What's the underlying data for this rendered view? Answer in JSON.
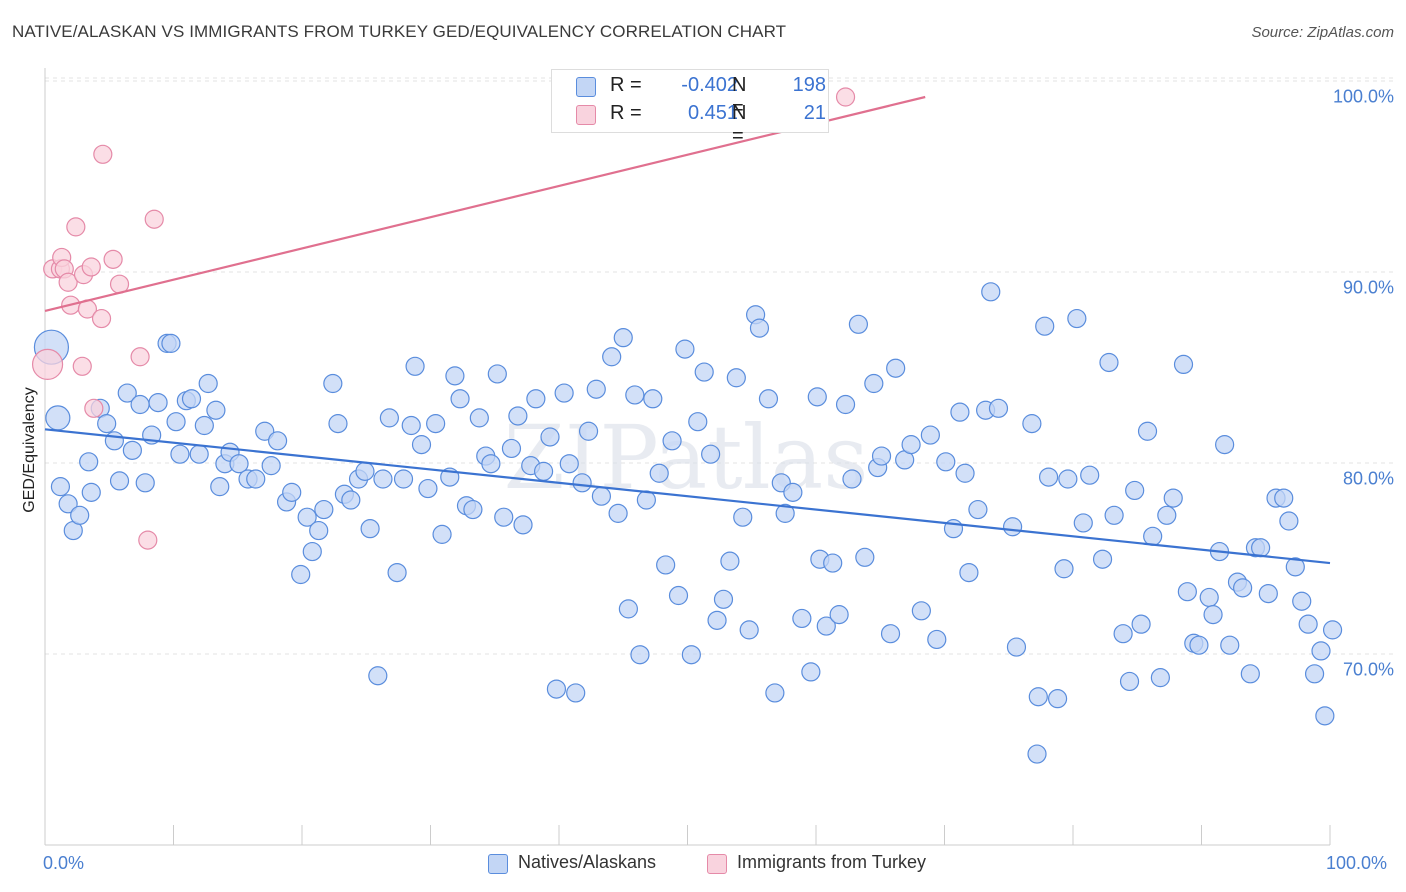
{
  "title": "NATIVE/ALASKAN VS IMMIGRANTS FROM TURKEY GED/EQUIVALENCY CORRELATION CHART",
  "source": "Source: ZipAtlas.com",
  "watermark": "ZIPatlas",
  "legend_stats": [
    {
      "r_label": "R =",
      "r_value": "-0.402",
      "n_label": "N =",
      "n_value": "198",
      "color": "#a8c4ef",
      "border": "#5a8ddd"
    },
    {
      "r_label": "R =",
      "r_value": "0.451",
      "n_label": "N =",
      "n_value": "21",
      "color": "#f7c1d0",
      "border": "#e58aa8"
    }
  ],
  "legend_bottom": [
    {
      "label": "Natives/Alaskans",
      "color": "#c3d6f5",
      "border": "#5a8ddd"
    },
    {
      "label": "Immigrants from Turkey",
      "color": "#f9d3de",
      "border": "#e58aa8"
    }
  ],
  "chart_data": {
    "type": "scatter",
    "title": "NATIVE/ALASKAN VS IMMIGRANTS FROM TURKEY GED/EQUIVALENCY CORRELATION CHART",
    "xlabel": "",
    "ylabel": "GED/Equivalency",
    "xlim": [
      0,
      100
    ],
    "ylim": [
      60,
      101.5
    ],
    "x_tick_labels": [
      "0.0%",
      "100.0%"
    ],
    "y_ticks": [
      70,
      80,
      90,
      100
    ],
    "y_tick_labels": [
      "70.0%",
      "80.0%",
      "90.0%",
      "100.0%"
    ],
    "grid": "horizontal dashed",
    "series": [
      {
        "name": "Natives/Alaskans",
        "color": "#5a8ddd",
        "fill": "#c3d6f5",
        "trend": {
          "x": [
            0,
            100
          ],
          "y": [
            82.6,
            75.6
          ],
          "color": "#3b73d1"
        },
        "points": [
          [
            0.5,
            86.9
          ],
          [
            1,
            83.2
          ],
          [
            1.2,
            79.6
          ],
          [
            1.8,
            78.7
          ],
          [
            2.2,
            77.3
          ],
          [
            2.7,
            78.1
          ],
          [
            3.4,
            80.9
          ],
          [
            3.6,
            79.3
          ],
          [
            4.3,
            83.7
          ],
          [
            4.8,
            82.9
          ],
          [
            5.4,
            82.0
          ],
          [
            5.8,
            79.9
          ],
          [
            6.4,
            84.5
          ],
          [
            6.8,
            81.5
          ],
          [
            7.4,
            83.9
          ],
          [
            7.8,
            79.8
          ],
          [
            8.3,
            82.3
          ],
          [
            8.8,
            84.0
          ],
          [
            9.5,
            87.1
          ],
          [
            9.8,
            87.1
          ],
          [
            10.2,
            83.0
          ],
          [
            10.5,
            81.3
          ],
          [
            11,
            84.1
          ],
          [
            11.4,
            84.2
          ],
          [
            12,
            81.3
          ],
          [
            12.4,
            82.8
          ],
          [
            12.7,
            85.0
          ],
          [
            13.3,
            83.6
          ],
          [
            13.6,
            79.6
          ],
          [
            14,
            80.8
          ],
          [
            14.4,
            81.4
          ],
          [
            15.1,
            80.8
          ],
          [
            15.8,
            80.0
          ],
          [
            16.4,
            80.0
          ],
          [
            17.1,
            82.5
          ],
          [
            17.6,
            80.7
          ],
          [
            18.1,
            82.0
          ],
          [
            18.8,
            78.8
          ],
          [
            19.2,
            79.3
          ],
          [
            19.9,
            75.0
          ],
          [
            20.4,
            78.0
          ],
          [
            20.8,
            76.2
          ],
          [
            21.3,
            77.3
          ],
          [
            21.7,
            78.4
          ],
          [
            22.4,
            85.0
          ],
          [
            22.8,
            82.9
          ],
          [
            23.3,
            79.2
          ],
          [
            23.8,
            78.9
          ],
          [
            24.4,
            80.0
          ],
          [
            24.9,
            80.4
          ],
          [
            25.3,
            77.4
          ],
          [
            25.9,
            69.7
          ],
          [
            26.3,
            80.0
          ],
          [
            26.8,
            83.2
          ],
          [
            27.4,
            75.1
          ],
          [
            27.9,
            80.0
          ],
          [
            28.5,
            82.8
          ],
          [
            28.8,
            85.9
          ],
          [
            29.3,
            81.8
          ],
          [
            29.8,
            79.5
          ],
          [
            30.4,
            82.9
          ],
          [
            30.9,
            77.1
          ],
          [
            31.5,
            80.1
          ],
          [
            31.9,
            85.4
          ],
          [
            32.3,
            84.2
          ],
          [
            32.8,
            78.6
          ],
          [
            33.3,
            78.4
          ],
          [
            33.8,
            83.2
          ],
          [
            34.3,
            81.2
          ],
          [
            34.7,
            80.8
          ],
          [
            35.2,
            85.5
          ],
          [
            35.7,
            78.0
          ],
          [
            36.3,
            81.6
          ],
          [
            36.8,
            83.3
          ],
          [
            37.2,
            77.6
          ],
          [
            37.8,
            80.7
          ],
          [
            38.2,
            84.2
          ],
          [
            38.8,
            80.4
          ],
          [
            39.3,
            82.2
          ],
          [
            39.8,
            69.0
          ],
          [
            40.4,
            84.5
          ],
          [
            40.8,
            80.8
          ],
          [
            41.3,
            68.8
          ],
          [
            41.8,
            79.8
          ],
          [
            42.3,
            82.5
          ],
          [
            42.9,
            84.7
          ],
          [
            43.3,
            79.1
          ],
          [
            44.1,
            86.4
          ],
          [
            44.6,
            78.2
          ],
          [
            45,
            87.4
          ],
          [
            45.4,
            73.2
          ],
          [
            45.9,
            84.4
          ],
          [
            46.3,
            70.8
          ],
          [
            46.8,
            78.9
          ],
          [
            47.3,
            84.2
          ],
          [
            47.8,
            80.3
          ],
          [
            48.3,
            75.5
          ],
          [
            48.8,
            82.0
          ],
          [
            49.3,
            73.9
          ],
          [
            49.8,
            86.8
          ],
          [
            50.3,
            70.8
          ],
          [
            50.8,
            83.0
          ],
          [
            51.3,
            85.6
          ],
          [
            51.8,
            81.3
          ],
          [
            52.3,
            72.6
          ],
          [
            52.8,
            73.7
          ],
          [
            53.3,
            75.7
          ],
          [
            53.8,
            85.3
          ],
          [
            54.3,
            78.0
          ],
          [
            54.8,
            72.1
          ],
          [
            55.3,
            88.6
          ],
          [
            55.6,
            87.9
          ],
          [
            56.3,
            84.2
          ],
          [
            56.8,
            68.8
          ],
          [
            57.3,
            79.8
          ],
          [
            57.6,
            78.2
          ],
          [
            58.2,
            79.3
          ],
          [
            58.9,
            72.7
          ],
          [
            59.6,
            69.9
          ],
          [
            60.1,
            84.3
          ],
          [
            60.3,
            75.8
          ],
          [
            60.8,
            72.3
          ],
          [
            61.3,
            75.6
          ],
          [
            61.8,
            72.9
          ],
          [
            62.3,
            83.9
          ],
          [
            62.8,
            80.0
          ],
          [
            63.3,
            88.1
          ],
          [
            63.8,
            75.9
          ],
          [
            64.5,
            85.0
          ],
          [
            64.8,
            80.6
          ],
          [
            65.1,
            81.2
          ],
          [
            65.8,
            71.9
          ],
          [
            66.2,
            85.8
          ],
          [
            66.9,
            81.0
          ],
          [
            67.4,
            81.8
          ],
          [
            68.2,
            73.1
          ],
          [
            68.9,
            82.3
          ],
          [
            69.4,
            71.6
          ],
          [
            70.1,
            80.9
          ],
          [
            70.7,
            77.4
          ],
          [
            71.2,
            83.5
          ],
          [
            71.6,
            80.3
          ],
          [
            71.9,
            75.1
          ],
          [
            72.6,
            78.4
          ],
          [
            73.2,
            83.6
          ],
          [
            73.6,
            89.8
          ],
          [
            74.2,
            83.7
          ],
          [
            75.3,
            77.5
          ],
          [
            75.6,
            71.2
          ],
          [
            76.8,
            82.9
          ],
          [
            77.3,
            68.6
          ],
          [
            77.8,
            88.0
          ],
          [
            78.1,
            80.1
          ],
          [
            78.8,
            68.5
          ],
          [
            79.3,
            75.3
          ],
          [
            79.6,
            80.0
          ],
          [
            80.3,
            88.4
          ],
          [
            80.8,
            77.7
          ],
          [
            81.3,
            80.2
          ],
          [
            82.3,
            75.8
          ],
          [
            82.8,
            86.1
          ],
          [
            83.2,
            78.1
          ],
          [
            83.9,
            71.9
          ],
          [
            84.4,
            69.4
          ],
          [
            84.8,
            79.4
          ],
          [
            85.3,
            72.4
          ],
          [
            85.8,
            82.5
          ],
          [
            86.2,
            77.0
          ],
          [
            86.8,
            69.6
          ],
          [
            87.3,
            78.1
          ],
          [
            87.8,
            79.0
          ],
          [
            88.6,
            86.0
          ],
          [
            88.9,
            74.1
          ],
          [
            89.4,
            71.4
          ],
          [
            89.8,
            71.3
          ],
          [
            90.6,
            73.8
          ],
          [
            90.9,
            72.9
          ],
          [
            91.4,
            76.2
          ],
          [
            91.8,
            81.8
          ],
          [
            92.2,
            71.3
          ],
          [
            92.8,
            74.6
          ],
          [
            93.2,
            74.3
          ],
          [
            93.8,
            69.8
          ],
          [
            94.2,
            76.4
          ],
          [
            94.6,
            76.4
          ],
          [
            95.2,
            74.0
          ],
          [
            95.8,
            79.0
          ],
          [
            96.4,
            79.0
          ],
          [
            96.8,
            77.8
          ],
          [
            97.3,
            75.4
          ],
          [
            97.8,
            73.6
          ],
          [
            98.3,
            72.4
          ],
          [
            98.8,
            69.8
          ],
          [
            99.3,
            71.0
          ],
          [
            99.6,
            67.6
          ],
          [
            100.2,
            72.1
          ],
          [
            77.2,
            65.6
          ]
        ]
      },
      {
        "name": "Immigrants from Turkey",
        "color": "#e58aa8",
        "fill": "#f9d3de",
        "trend": {
          "x": [
            0,
            68.5
          ],
          "y": [
            88.8,
            100.0
          ],
          "color": "#e0708f"
        },
        "points": [
          [
            0.2,
            86.0
          ],
          [
            0.6,
            91.0
          ],
          [
            1.2,
            91.0
          ],
          [
            1.3,
            91.6
          ],
          [
            1.5,
            91.0
          ],
          [
            1.8,
            90.3
          ],
          [
            2,
            89.1
          ],
          [
            2.4,
            93.2
          ],
          [
            2.9,
            85.9
          ],
          [
            3,
            90.7
          ],
          [
            3.3,
            88.9
          ],
          [
            3.6,
            91.1
          ],
          [
            3.8,
            83.7
          ],
          [
            4.4,
            88.4
          ],
          [
            4.5,
            97.0
          ],
          [
            5.3,
            91.5
          ],
          [
            5.8,
            90.2
          ],
          [
            7.4,
            86.4
          ],
          [
            8,
            76.8
          ],
          [
            8.5,
            93.6
          ],
          [
            62.3,
            100.0
          ]
        ]
      }
    ]
  }
}
